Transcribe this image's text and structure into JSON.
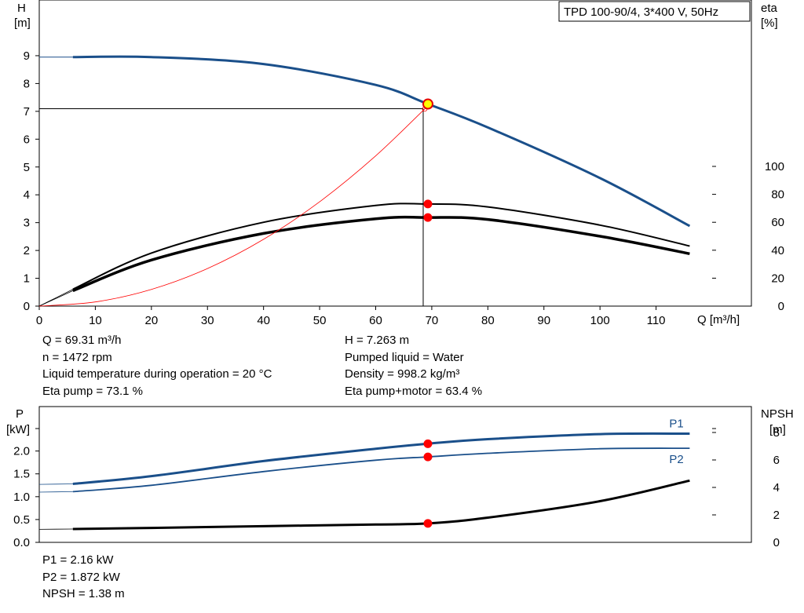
{
  "chart_data": [
    {
      "type": "line",
      "title": "TPD 100-90/4, 3*400 V, 50Hz",
      "xlabel": "Q [m³/h]",
      "ylabel": [
        "H",
        "[m]"
      ],
      "y2label": [
        "eta",
        "[%]"
      ],
      "xlim": [
        0,
        120
      ],
      "ylim": [
        0,
        10
      ],
      "y2lim": [
        0,
        100
      ],
      "x_ticks": [
        "0",
        "10",
        "20",
        "30",
        "40",
        "50",
        "60",
        "70",
        "80",
        "90",
        "100",
        "110"
      ],
      "y_ticks": [
        "0",
        "1",
        "2",
        "3",
        "4",
        "5",
        "6",
        "7",
        "8",
        "9"
      ],
      "y2_ticks": [
        "0",
        "20",
        "40",
        "60",
        "80",
        "100"
      ],
      "grid": false,
      "series": [
        {
          "role": "H",
          "color": "#1a4f8a",
          "x": [
            0,
            6,
            20,
            40,
            60,
            69.31,
            80,
            100,
            116
          ],
          "y": [
            8.95,
            8.95,
            8.95,
            8.7,
            7.95,
            7.263,
            6.42,
            4.6,
            2.88
          ]
        },
        {
          "role": "eta pump",
          "color": "#000000",
          "x": [
            0,
            6,
            20,
            40,
            60,
            69.31,
            80,
            100,
            116
          ],
          "y": [
            0,
            12,
            38,
            60,
            72,
            73.1,
            71,
            58,
            43
          ]
        },
        {
          "role": "eta pump+motor",
          "color": "#000000",
          "x": [
            0,
            6,
            20,
            40,
            60,
            69.31,
            80,
            100,
            116
          ],
          "y": [
            0,
            11,
            33,
            52,
            62.5,
            63.4,
            62,
            50,
            37.5
          ]
        },
        {
          "role": "system curve",
          "color": "#ff0000",
          "x": [
            0,
            10,
            20,
            30,
            40,
            50,
            60,
            69.31
          ],
          "y": [
            0,
            0.15,
            0.6,
            1.35,
            2.4,
            3.75,
            5.4,
            7.2
          ]
        }
      ],
      "operating_point": {
        "x": 69.31,
        "H": 7.263,
        "eta_pump": 73.1,
        "eta_pump_motor": 63.4
      }
    },
    {
      "type": "line",
      "ylabel": [
        "P",
        "[kW]"
      ],
      "y2label": [
        "NPSH",
        "[m]"
      ],
      "xlim": [
        0,
        120
      ],
      "ylim": [
        0,
        2.75
      ],
      "y2lim": [
        0,
        10
      ],
      "y_ticks": [
        "0.0",
        "0.5",
        "1.0",
        "1.5",
        "2.0"
      ],
      "y2_ticks": [
        "0",
        "2",
        "4",
        "6",
        "8"
      ],
      "grid": false,
      "series": [
        {
          "name": "P1",
          "color": "#1a4f8a",
          "x": [
            0,
            6,
            20,
            40,
            60,
            69.31,
            80,
            100,
            116
          ],
          "y": [
            1.27,
            1.28,
            1.45,
            1.78,
            2.05,
            2.16,
            2.26,
            2.37,
            2.38
          ]
        },
        {
          "name": "P2",
          "color": "#1a4f8a",
          "x": [
            0,
            6,
            20,
            40,
            60,
            69.31,
            80,
            100,
            116
          ],
          "y": [
            1.1,
            1.11,
            1.25,
            1.55,
            1.8,
            1.872,
            1.95,
            2.05,
            2.06
          ]
        },
        {
          "role": "NPSH",
          "color": "#000000",
          "x": [
            0,
            6,
            20,
            40,
            60,
            69.31,
            80,
            100,
            116
          ],
          "y": [
            0.95,
            0.97,
            1.05,
            1.18,
            1.3,
            1.38,
            1.8,
            3.0,
            4.5
          ]
        }
      ],
      "operating_point": {
        "x": 69.31,
        "P1": 2.16,
        "P2": 1.872,
        "NPSH": 1.38
      }
    }
  ],
  "info_top_left": [
    "Q = 69.31 m³/h",
    "n = 1472 rpm",
    "Liquid temperature during operation = 20 °C",
    "Eta pump = 73.1 %"
  ],
  "info_top_right": [
    "H = 7.263 m",
    "Pumped liquid = Water",
    "Density = 998.2 kg/m³",
    "Eta pump+motor = 63.4 %"
  ],
  "info_bottom": [
    "P1 = 2.16 kW",
    "P2 = 1.872 kW",
    "NPSH = 1.38 m"
  ]
}
